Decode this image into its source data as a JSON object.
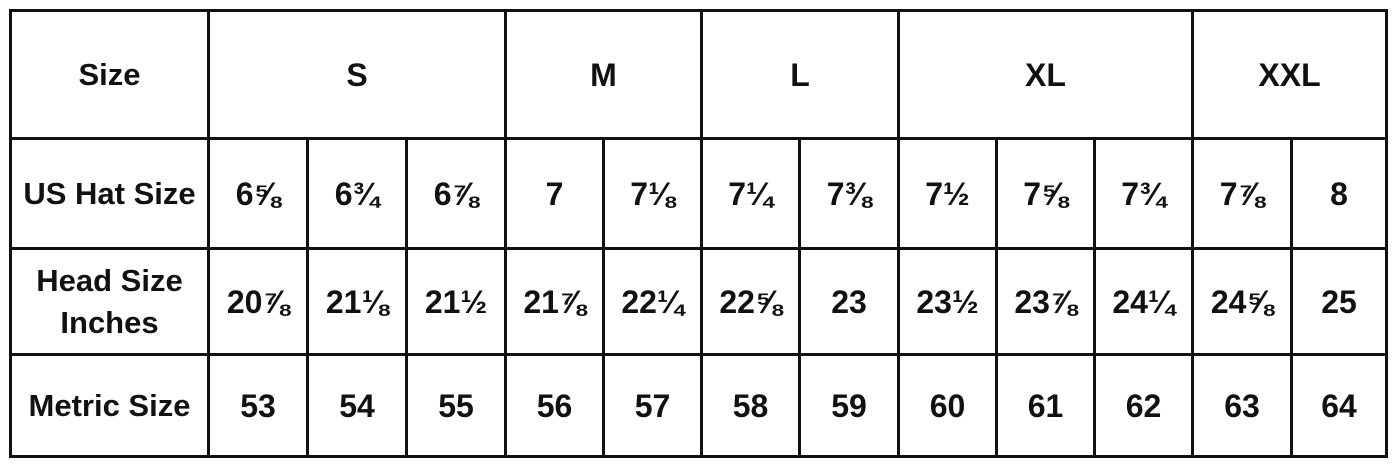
{
  "header": {
    "label": "Size",
    "sizes": [
      "S",
      "M",
      "L",
      "XL",
      "XXL"
    ]
  },
  "rows": [
    {
      "label": "US Hat Size",
      "values": [
        "6⅝",
        "6¾",
        "6⅞",
        "7",
        "7⅛",
        "7¼",
        "7⅜",
        "7½",
        "7⅝",
        "7¾",
        "7⅞",
        "8"
      ]
    },
    {
      "label": "Head Size Inches",
      "values": [
        "20⅞",
        "21⅛",
        "21½",
        "21⅞",
        "22¼",
        "22⅝",
        "23",
        "23½",
        "23⅞",
        "24¼",
        "24⅝",
        "25"
      ]
    },
    {
      "label": "Metric Size",
      "values": [
        "53",
        "54",
        "55",
        "56",
        "57",
        "58",
        "59",
        "60",
        "61",
        "62",
        "63",
        "64"
      ]
    }
  ]
}
